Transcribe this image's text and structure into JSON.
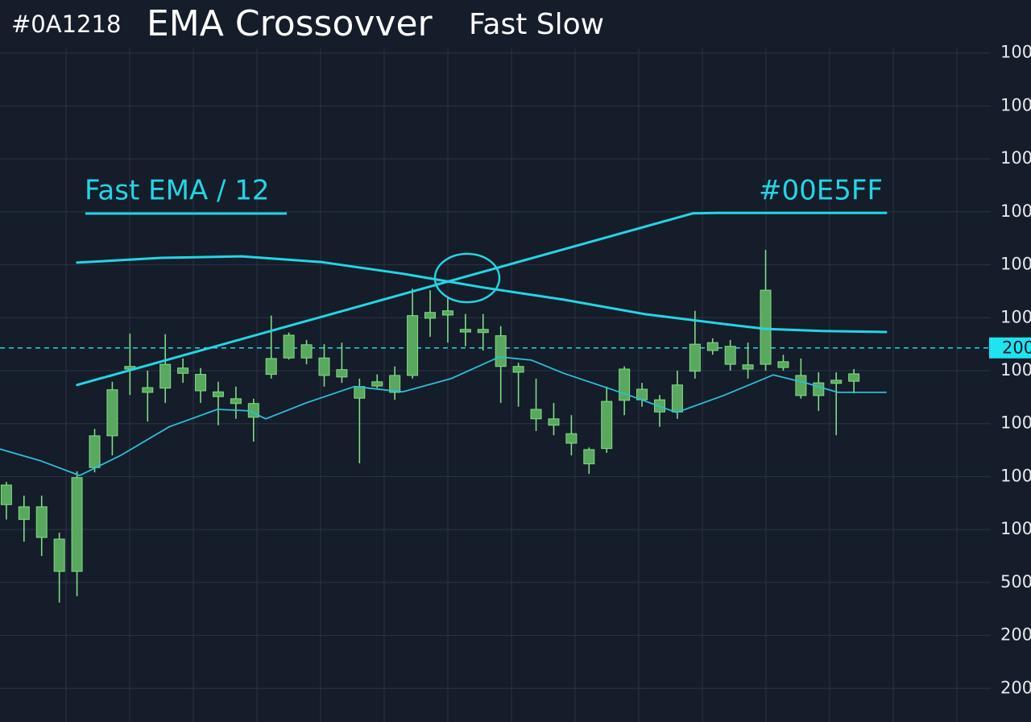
{
  "chart_data": {
    "type": "candlestick",
    "title_prefix": "#0A1218",
    "title": "EMA Crossovver",
    "subtitle": "Fast Slow",
    "annotations": [
      {
        "text": "Fast EMA  / 12"
      },
      {
        "text": "#00E5FF"
      }
    ],
    "xlim": [
      -0.36,
      58.03
    ],
    "ylim": [
      0,
      14
    ],
    "yticks": [
      {
        "value": 1,
        "label": "200"
      },
      {
        "value": 2,
        "label": "200"
      },
      {
        "value": 3,
        "label": "500"
      },
      {
        "value": 4,
        "label": "100"
      },
      {
        "value": 5,
        "label": "100"
      },
      {
        "value": 6,
        "label": "100"
      },
      {
        "value": 7,
        "label": "100"
      },
      {
        "value": 8,
        "label": "100"
      },
      {
        "value": 9,
        "label": "100"
      },
      {
        "value": 10,
        "label": "100"
      },
      {
        "value": 11,
        "label": "100"
      },
      {
        "value": 12,
        "label": "100"
      },
      {
        "value": 13,
        "label": "100"
      }
    ],
    "price_marker": {
      "value": 7.43,
      "label": "200"
    },
    "grid": true,
    "candle_color": "#5aa860",
    "wick_color": "#7fdc84",
    "candles": {
      "x": [
        0,
        1,
        2,
        3,
        4,
        5,
        6,
        7,
        8,
        9,
        10,
        11,
        12,
        13,
        14,
        15,
        16,
        17,
        18,
        19,
        20,
        21,
        22,
        23,
        24,
        25,
        26,
        27,
        28,
        29,
        30,
        31,
        32,
        33,
        34,
        35,
        36,
        37,
        38,
        39,
        40,
        41,
        42,
        43,
        44,
        45,
        46,
        47,
        48
      ],
      "open": [
        4.47,
        4.19,
        3.85,
        3.21,
        3.21,
        5.17,
        5.77,
        7.03,
        6.59,
        6.67,
        6.95,
        6.62,
        6.51,
        6.38,
        6.12,
        6.93,
        7.24,
        7.24,
        6.91,
        6.88,
        6.48,
        6.71,
        6.59,
        6.91,
        7.99,
        8.05,
        7.73,
        7.72,
        7.08,
        6.97,
        6.09,
        5.97,
        5.63,
        5.24,
        5.53,
        6.44,
        6.45,
        6.22,
        6.22,
        6.99,
        7.38,
        7.12,
        7.03,
        7.12,
        7.06,
        6.53,
        6.53,
        6.76,
        6.8
      ],
      "high": [
        4.9,
        4.64,
        4.64,
        3.94,
        5.1,
        5.9,
        6.79,
        7.7,
        7.0,
        7.69,
        7.23,
        7.05,
        6.79,
        6.7,
        6.47,
        8.04,
        7.72,
        7.58,
        7.5,
        7.53,
        6.85,
        6.93,
        7.08,
        8.55,
        8.52,
        8.37,
        8.07,
        8.07,
        7.84,
        7.15,
        6.85,
        6.39,
        6.16,
        5.55,
        6.7,
        7.08,
        6.77,
        6.54,
        7.0,
        8.13,
        7.61,
        7.58,
        7.53,
        9.28,
        7.3,
        7.23,
        6.97,
        6.97,
        7.03
      ],
      "low": [
        4.19,
        3.77,
        3.5,
        2.62,
        2.74,
        5.08,
        5.4,
        6.54,
        6.04,
        6.39,
        6.77,
        6.39,
        5.97,
        6.09,
        5.66,
        6.85,
        7.21,
        7.12,
        6.7,
        6.77,
        5.25,
        6.67,
        6.45,
        6.85,
        7.64,
        7.53,
        7.46,
        7.38,
        6.39,
        6.32,
        5.86,
        5.78,
        5.4,
        5.05,
        5.45,
        6.16,
        6.32,
        5.94,
        6.09,
        6.85,
        7.3,
        7.0,
        6.85,
        7.0,
        7.0,
        6.47,
        6.24,
        5.78,
        6.57
      ],
      "close": [
        4.84,
        4.43,
        4.43,
        3.82,
        4.98,
        5.77,
        6.64,
        7.08,
        6.68,
        7.12,
        7.05,
        6.93,
        6.6,
        6.47,
        6.38,
        7.23,
        7.67,
        7.49,
        7.24,
        7.02,
        6.7,
        6.79,
        6.91,
        8.04,
        8.1,
        8.13,
        7.78,
        7.78,
        7.66,
        7.08,
        6.27,
        6.09,
        5.81,
        5.51,
        6.42,
        7.03,
        6.65,
        6.45,
        6.73,
        7.5,
        7.53,
        7.46,
        7.11,
        8.52,
        7.17,
        6.91,
        6.77,
        6.82,
        6.94
      ]
    },
    "series": [
      {
        "color": "#22d6e4",
        "width": 3,
        "x": [
          4.01,
          38.87,
          40.24,
          49.82
        ],
        "values": [
          6.73,
          9.97,
          9.98,
          9.98
        ]
      },
      {
        "color": "#22d6e4",
        "width": 3,
        "x": [
          4.01,
          8.76,
          13.32,
          17.88,
          22.45,
          27.01,
          31.57,
          36.13,
          40.69,
          42.97,
          46.17,
          49.82
        ],
        "values": [
          9.04,
          9.13,
          9.16,
          9.05,
          8.83,
          8.57,
          8.34,
          8.07,
          7.88,
          7.79,
          7.75,
          7.73
        ]
      },
      {
        "color": "#2bbfd6",
        "width": 1.8,
        "x": [
          -0.36,
          1.92,
          4.15,
          6.48,
          9.22,
          11.95,
          13.78,
          14.69,
          16.97,
          19.71,
          22.45,
          25.18,
          27.92,
          29.74,
          31.57,
          35.22,
          37.96,
          40.69,
          43.43,
          45.26,
          47.08,
          49.82
        ],
        "values": [
          5.52,
          5.3,
          5.02,
          5.4,
          5.94,
          6.27,
          6.24,
          6.09,
          6.39,
          6.7,
          6.6,
          6.85,
          7.26,
          7.2,
          6.95,
          6.54,
          6.21,
          6.54,
          6.92,
          6.77,
          6.59,
          6.59
        ]
      }
    ]
  }
}
